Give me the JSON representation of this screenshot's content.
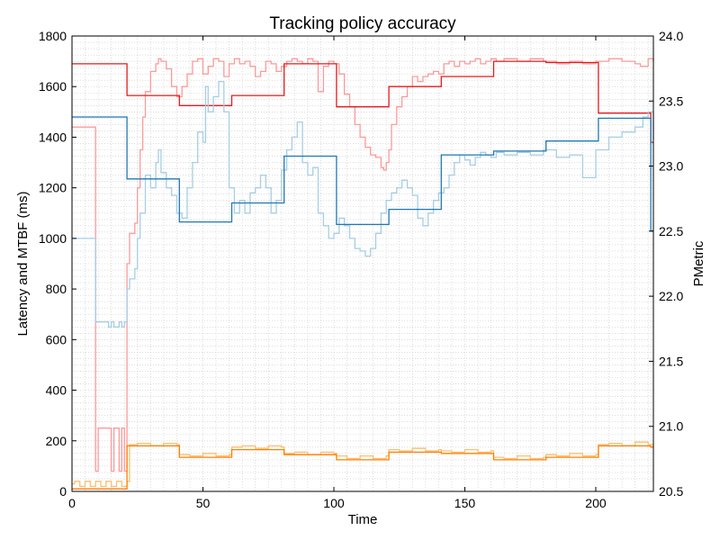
{
  "chart_data": {
    "type": "line",
    "title": "Tracking policy accuracy",
    "xlabel": "Time",
    "ylabel_left": "Latency and MTBF (ms)",
    "ylabel_right": "PMetric",
    "xlim": [
      0,
      222
    ],
    "ylim_left": [
      0,
      1800
    ],
    "ylim_right": [
      20.5,
      24.0
    ],
    "xticks": [
      0,
      50,
      100,
      150,
      200
    ],
    "xtick_labels": [
      "0",
      "50",
      "100",
      "150",
      "200"
    ],
    "yticks_left": [
      0,
      200,
      400,
      600,
      800,
      1000,
      1200,
      1400,
      1600,
      1800
    ],
    "ytick_labels_left": [
      "0",
      "200",
      "400",
      "600",
      "800",
      "1000",
      "1200",
      "1400",
      "1600",
      "1800"
    ],
    "yticks_right": [
      20.5,
      21.0,
      21.5,
      22.0,
      22.5,
      23.0,
      23.5,
      24.0
    ],
    "ytick_labels_right": [
      "20.5",
      "21.0",
      "21.5",
      "22.0",
      "22.5",
      "23.0",
      "23.5",
      "24.0"
    ],
    "grid": true,
    "series": [
      {
        "axis": "left",
        "color": "#fb9a99",
        "x": [
          0,
          8,
          9,
          10,
          14,
          15,
          16,
          18,
          19,
          20,
          21,
          22,
          24,
          25,
          26,
          27,
          28,
          30,
          32,
          33,
          34,
          36,
          38,
          40,
          42,
          44,
          46,
          48,
          50,
          52,
          54,
          56,
          58,
          60,
          62,
          64,
          66,
          68,
          70,
          72,
          74,
          76,
          78,
          80,
          82,
          84,
          86,
          88,
          90,
          92,
          94,
          96,
          98,
          100,
          102,
          104,
          106,
          108,
          110,
          112,
          114,
          116,
          118,
          119,
          120,
          121,
          122,
          124,
          126,
          128,
          130,
          132,
          134,
          136,
          138,
          140,
          142,
          144,
          146,
          148,
          150,
          152,
          154,
          156,
          158,
          160,
          162,
          165,
          170,
          175,
          180,
          185,
          190,
          195,
          200,
          205,
          210,
          215,
          217,
          220,
          222
        ],
        "y": [
          1440,
          1440,
          80,
          250,
          250,
          80,
          250,
          80,
          250,
          80,
          900,
          1020,
          1060,
          1200,
          1350,
          1480,
          1580,
          1660,
          1690,
          1710,
          1700,
          1670,
          1600,
          1560,
          1600,
          1650,
          1700,
          1710,
          1650,
          1680,
          1710,
          1700,
          1640,
          1690,
          1710,
          1690,
          1700,
          1680,
          1640,
          1660,
          1700,
          1690,
          1660,
          1680,
          1700,
          1710,
          1700,
          1690,
          1710,
          1700,
          1580,
          1680,
          1700,
          1690,
          1650,
          1570,
          1520,
          1450,
          1400,
          1360,
          1330,
          1320,
          1280,
          1270,
          1300,
          1350,
          1450,
          1520,
          1560,
          1600,
          1640,
          1620,
          1640,
          1650,
          1660,
          1650,
          1690,
          1700,
          1680,
          1700,
          1690,
          1700,
          1710,
          1690,
          1700,
          1710,
          1700,
          1710,
          1700,
          1710,
          1700,
          1690,
          1700,
          1690,
          1700,
          1710,
          1700,
          1690,
          1680,
          1710,
          1700
        ]
      },
      {
        "axis": "left",
        "color": "#e31a1c",
        "x": [
          0,
          21,
          21,
          41,
          41,
          61,
          61,
          81,
          81,
          101,
          101,
          121,
          121,
          141,
          141,
          161,
          161,
          181,
          181,
          201,
          201,
          221,
          221,
          222
        ],
        "y": [
          1690,
          1690,
          1565,
          1565,
          1525,
          1525,
          1565,
          1565,
          1690,
          1690,
          1520,
          1520,
          1600,
          1600,
          1640,
          1640,
          1700,
          1700,
          1695,
          1695,
          1495,
          1495,
          1380,
          1380
        ]
      },
      {
        "axis": "left",
        "color": "#a6cee3",
        "x": [
          0,
          8,
          9,
          10,
          14,
          15,
          16,
          18,
          19,
          20,
          21,
          22,
          24,
          25,
          26,
          28,
          30,
          32,
          33,
          34,
          36,
          38,
          40,
          42,
          44,
          46,
          48,
          50,
          51,
          52,
          54,
          56,
          58,
          60,
          62,
          64,
          66,
          68,
          70,
          72,
          74,
          76,
          78,
          80,
          82,
          84,
          86,
          88,
          90,
          92,
          94,
          96,
          98,
          100,
          102,
          104,
          106,
          108,
          110,
          112,
          114,
          116,
          118,
          120,
          122,
          124,
          126,
          128,
          130,
          132,
          134,
          136,
          138,
          140,
          142,
          144,
          146,
          148,
          150,
          152,
          154,
          156,
          158,
          160,
          162,
          165,
          170,
          175,
          180,
          185,
          190,
          195,
          200,
          205,
          210,
          215,
          218,
          220,
          222
        ],
        "y": [
          1000,
          1000,
          670,
          670,
          650,
          670,
          650,
          670,
          650,
          670,
          800,
          840,
          880,
          1000,
          1100,
          1250,
          1200,
          1300,
          1350,
          1260,
          1200,
          1170,
          1100,
          1080,
          1200,
          1300,
          1420,
          1380,
          1600,
          1500,
          1560,
          1620,
          1500,
          1200,
          1100,
          1150,
          1100,
          1180,
          1200,
          1250,
          1200,
          1100,
          1150,
          1270,
          1350,
          1400,
          1460,
          1300,
          1250,
          1280,
          1100,
          1050,
          1000,
          1020,
          1080,
          1050,
          1000,
          960,
          950,
          930,
          960,
          1020,
          1100,
          1150,
          1180,
          1200,
          1230,
          1200,
          1170,
          1080,
          1050,
          1100,
          1150,
          1180,
          1200,
          1250,
          1300,
          1330,
          1310,
          1290,
          1320,
          1340,
          1330,
          1320,
          1340,
          1330,
          1340,
          1330,
          1350,
          1320,
          1330,
          1240,
          1350,
          1400,
          1420,
          1440,
          1480,
          1500,
          1390
        ]
      },
      {
        "axis": "left",
        "color": "#1f78b4",
        "x": [
          0,
          21,
          21,
          41,
          41,
          61,
          61,
          81,
          81,
          101,
          101,
          121,
          121,
          141,
          141,
          161,
          161,
          181,
          181,
          201,
          201,
          221,
          221,
          222
        ],
        "y": [
          1480,
          1480,
          1235,
          1235,
          1065,
          1065,
          1140,
          1140,
          1325,
          1325,
          1055,
          1055,
          1115,
          1115,
          1330,
          1330,
          1345,
          1345,
          1385,
          1385,
          1475,
          1475,
          1030,
          1030
        ]
      },
      {
        "axis": "left",
        "color": "#fdbf6f",
        "x": [
          0,
          1,
          3,
          5,
          7,
          9,
          11,
          13,
          15,
          17,
          19,
          21,
          22,
          25,
          30,
          35,
          40,
          41,
          45,
          50,
          55,
          60,
          61,
          65,
          70,
          75,
          80,
          81,
          85,
          90,
          95,
          100,
          101,
          105,
          110,
          115,
          120,
          121,
          125,
          130,
          135,
          140,
          141,
          145,
          150,
          155,
          160,
          161,
          165,
          170,
          175,
          180,
          181,
          185,
          190,
          195,
          200,
          201,
          205,
          210,
          215,
          220,
          222
        ],
        "y": [
          30,
          40,
          20,
          40,
          20,
          40,
          20,
          40,
          20,
          40,
          20,
          40,
          185,
          190,
          180,
          190,
          185,
          145,
          140,
          150,
          140,
          145,
          175,
          180,
          170,
          180,
          175,
          150,
          155,
          145,
          155,
          150,
          140,
          130,
          140,
          130,
          140,
          165,
          160,
          170,
          160,
          165,
          160,
          155,
          165,
          155,
          160,
          135,
          130,
          140,
          130,
          135,
          145,
          140,
          150,
          140,
          145,
          185,
          190,
          180,
          195,
          185,
          180
        ]
      },
      {
        "axis": "left",
        "color": "#ff7f00",
        "x": [
          0,
          21,
          21,
          41,
          41,
          61,
          61,
          81,
          81,
          101,
          101,
          121,
          121,
          141,
          141,
          161,
          161,
          181,
          181,
          201,
          201,
          221,
          221,
          222
        ],
        "y": [
          10,
          10,
          180,
          180,
          135,
          135,
          165,
          165,
          145,
          145,
          125,
          125,
          155,
          155,
          150,
          150,
          125,
          125,
          135,
          135,
          180,
          180,
          175,
          175
        ]
      }
    ]
  }
}
